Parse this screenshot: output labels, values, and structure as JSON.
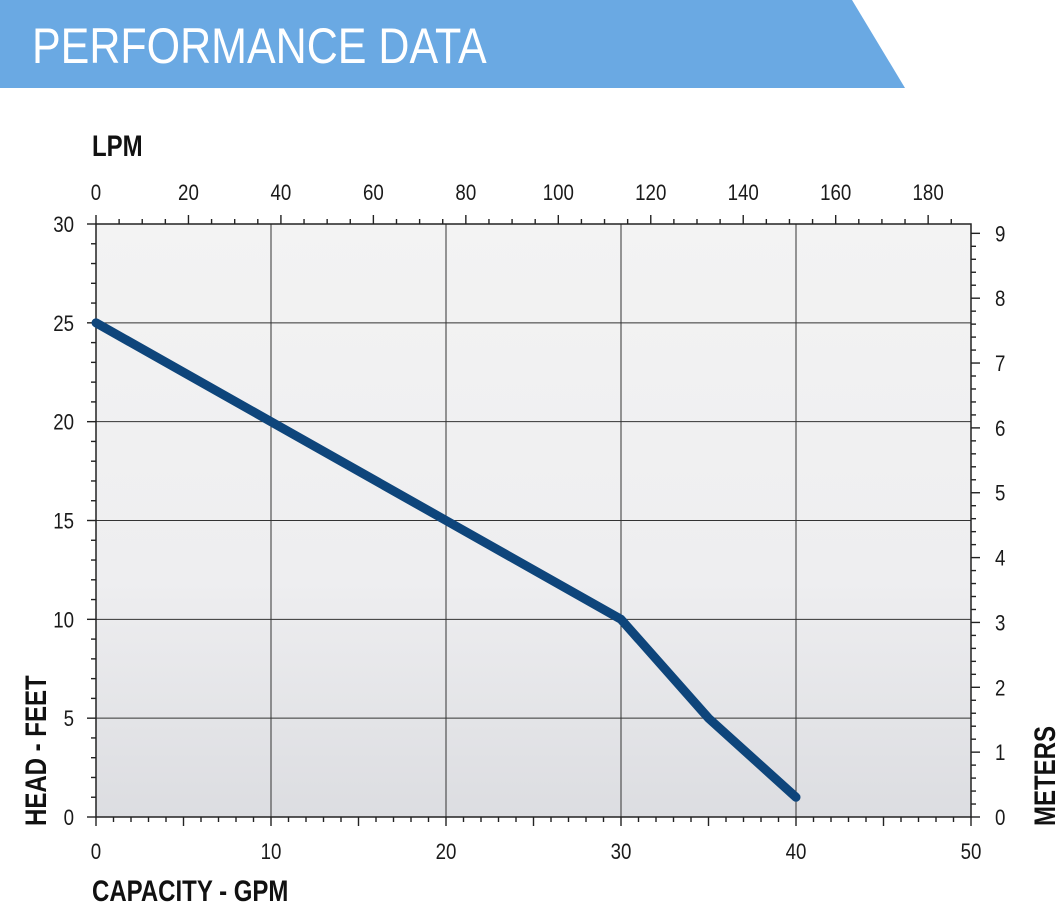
{
  "header": {
    "title": "PERFORMANCE DATA"
  },
  "colors": {
    "banner": "#6aa9e3",
    "curve": "#0e457b",
    "grid": "#333333"
  },
  "chart_data": {
    "type": "line",
    "title": "",
    "xlabel": "CAPACITY - GPM",
    "ylabel": "HEAD - FEET",
    "x2label": "LPM",
    "y2label": "METERS",
    "xlim": [
      0,
      50
    ],
    "ylim": [
      0,
      30
    ],
    "x2lim": [
      0,
      189.27
    ],
    "y2lim": [
      0,
      9.144
    ],
    "xticks": [
      0,
      10,
      20,
      30,
      40,
      50
    ],
    "yticks": [
      0,
      5,
      10,
      15,
      20,
      25,
      30
    ],
    "x2ticks": [
      0,
      20,
      40,
      60,
      80,
      100,
      120,
      140,
      160,
      180
    ],
    "y2ticks": [
      0,
      1,
      2,
      3,
      4,
      5,
      6,
      7,
      8,
      9
    ],
    "grid": true,
    "series": [
      {
        "x": [
          0,
          10,
          20,
          30,
          35,
          40
        ],
        "y": [
          25,
          20,
          15,
          10,
          5,
          1
        ]
      }
    ]
  }
}
